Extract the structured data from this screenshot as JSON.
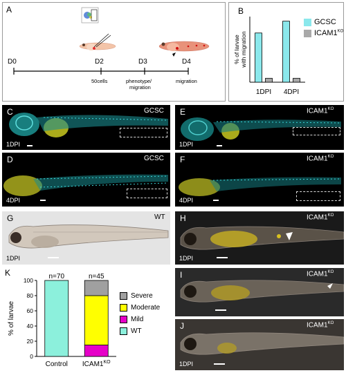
{
  "panelA": {
    "label": "A",
    "timeline": [
      "D0",
      "D2",
      "D3",
      "D4"
    ],
    "sublabels": [
      "50cells",
      "phenotype/",
      "migration",
      "migration"
    ]
  },
  "panelB": {
    "label": "B",
    "legend": [
      {
        "name": "GCSC",
        "color": "#8be8ec"
      },
      {
        "name": "ICAM1",
        "sup": "KO",
        "color": "#a9a9a9"
      }
    ]
  },
  "images": {
    "C": {
      "label": "C",
      "title": "GCSC",
      "time": "1DPI"
    },
    "D": {
      "label": "D",
      "title": "GCSC",
      "time": "4DPI"
    },
    "E": {
      "label": "E",
      "title": "ICAM1",
      "sup": "KO",
      "time": "1DPI"
    },
    "F": {
      "label": "F",
      "title": "ICAM1",
      "sup": "KO",
      "time": "4DPI"
    },
    "G": {
      "label": "G",
      "title": "WT",
      "time": "1DPI"
    },
    "H": {
      "label": "H",
      "title": "ICAM1",
      "sup": "KO",
      "time": "1DPI"
    },
    "I": {
      "label": "I",
      "title": "ICAM1",
      "sup": "KO",
      "time": ""
    },
    "J": {
      "label": "J",
      "title": "ICAM1",
      "sup": "KO",
      "time": "1DPI"
    }
  },
  "panelK": {
    "label": "K"
  },
  "chart_data": [
    {
      "type": "bar",
      "panel": "B",
      "categories": [
        "1DPI",
        "4DPI"
      ],
      "series": [
        {
          "name": "GCSC",
          "values": [
            75,
            93
          ],
          "color": "#8be8ec"
        },
        {
          "name": "ICAM1KO",
          "values": [
            6,
            6
          ],
          "color": "#a9a9a9"
        }
      ],
      "ylabel": "% of larvae with migration",
      "ylim": [
        0,
        100
      ],
      "yticks": [],
      "legend": "top-right"
    },
    {
      "type": "bar",
      "stacked": true,
      "panel": "K",
      "categories": [
        "Control",
        "ICAM1KO"
      ],
      "category_labels": [
        {
          "text": "Control"
        },
        {
          "text": "ICAM1",
          "sup": "KO"
        }
      ],
      "n_labels": [
        "n=70",
        "n=45"
      ],
      "series": [
        {
          "name": "WT",
          "values": [
            100,
            0
          ],
          "color": "#8cf0dc"
        },
        {
          "name": "Mild",
          "values": [
            0,
            15
          ],
          "color": "#e600c8"
        },
        {
          "name": "Moderate",
          "values": [
            0,
            65
          ],
          "color": "#ffff00"
        },
        {
          "name": "Severe",
          "values": [
            0,
            20
          ],
          "color": "#a0a0a0"
        }
      ],
      "ylabel": "% of larvae",
      "ylim": [
        0,
        100
      ],
      "yticks": [
        "0",
        "20",
        "40",
        "60",
        "80",
        "100"
      ],
      "legend": "right"
    }
  ]
}
